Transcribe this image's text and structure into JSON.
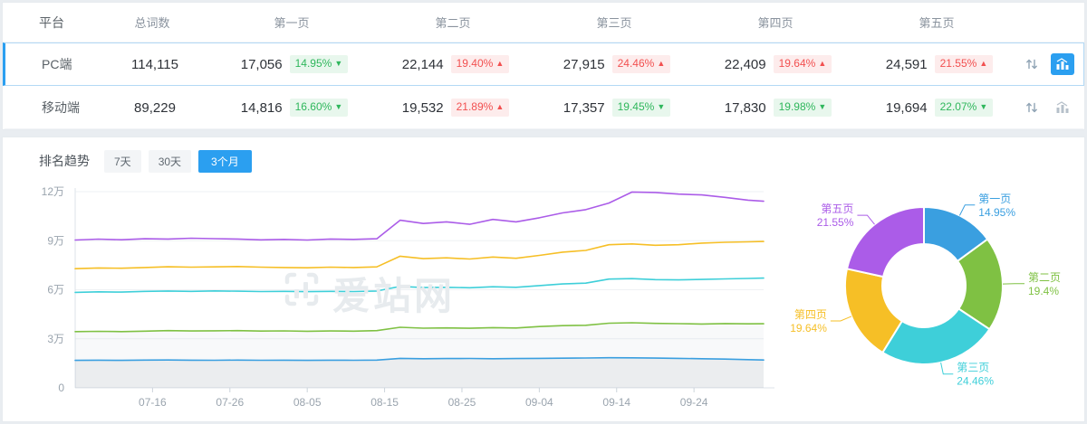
{
  "colors": {
    "accent_blue": "#2b9ff0",
    "badge_up_red": "#f25050",
    "badge_up_bg": "#fdecec",
    "badge_down_green": "#2fb75c",
    "badge_down_bg": "#e8f7ed",
    "series_blue": "#3a9fe0",
    "series_green": "#7fc143",
    "series_cyan": "#3ecfd9",
    "series_yellow": "#f6bf26",
    "series_purple": "#ab5ce8"
  },
  "glyphs": {
    "up": "▲",
    "down": "▼"
  },
  "table": {
    "headers": [
      "平台",
      "总词数",
      "第一页",
      "第二页",
      "第三页",
      "第四页",
      "第五页"
    ],
    "rows": [
      {
        "platform": "PC端",
        "total": "114,115",
        "selected": true,
        "trend_selected": true,
        "pages": [
          {
            "count": "17,056",
            "pct": "14.95%",
            "dir": "down"
          },
          {
            "count": "22,144",
            "pct": "19.40%",
            "dir": "up"
          },
          {
            "count": "27,915",
            "pct": "24.46%",
            "dir": "up"
          },
          {
            "count": "22,409",
            "pct": "19.64%",
            "dir": "up"
          },
          {
            "count": "24,591",
            "pct": "21.55%",
            "dir": "up"
          }
        ]
      },
      {
        "platform": "移动端",
        "total": "89,229",
        "selected": false,
        "trend_selected": false,
        "pages": [
          {
            "count": "14,816",
            "pct": "16.60%",
            "dir": "down"
          },
          {
            "count": "19,532",
            "pct": "21.89%",
            "dir": "up"
          },
          {
            "count": "17,357",
            "pct": "19.45%",
            "dir": "down"
          },
          {
            "count": "17,830",
            "pct": "19.98%",
            "dir": "down"
          },
          {
            "count": "19,694",
            "pct": "22.07%",
            "dir": "down"
          }
        ]
      }
    ]
  },
  "trend": {
    "title": "排名趋势",
    "tabs": [
      {
        "label": "7天",
        "active": false
      },
      {
        "label": "30天",
        "active": false
      },
      {
        "label": "3个月",
        "active": true
      }
    ]
  },
  "watermark": "爱站网",
  "chart_data": [
    {
      "type": "line",
      "title": "排名趋势（3个月，PC端，累计词数）",
      "stacked_cumulative": true,
      "grid": true,
      "legend": "none",
      "x_days": [
        0,
        3,
        6,
        9,
        12,
        15,
        18,
        21,
        24,
        27,
        30,
        33,
        36,
        39,
        42,
        45,
        48,
        51,
        54,
        57,
        60,
        63,
        66,
        69,
        72,
        75,
        78,
        81,
        84,
        87,
        89
      ],
      "x_tick_days": [
        10,
        20,
        30,
        40,
        50,
        60,
        70,
        80
      ],
      "x_tick_labels": [
        "07-16",
        "07-26",
        "08-05",
        "08-15",
        "08-25",
        "09-04",
        "09-14",
        "09-24"
      ],
      "ylim": [
        0,
        120000
      ],
      "y_ticks": [
        0,
        30000,
        60000,
        90000,
        120000
      ],
      "y_tick_labels": [
        "0",
        "3万",
        "6万",
        "9万",
        "12万"
      ],
      "series": [
        {
          "name": "第一页(累计)",
          "color": "#3a9fe0",
          "area": 0.1,
          "values": [
            16800,
            16900,
            16820,
            16950,
            17050,
            16920,
            16860,
            16980,
            16880,
            16930,
            16820,
            16900,
            16860,
            17000,
            18050,
            17820,
            17900,
            17960,
            17820,
            17900,
            18020,
            18120,
            18240,
            18420,
            18360,
            18220,
            18040,
            17820,
            17560,
            17260,
            17056
          ]
        },
        {
          "name": "第二页(累计)",
          "color": "#7fc143",
          "area": 0.05,
          "values": [
            34400,
            34550,
            34420,
            34700,
            34980,
            34800,
            34900,
            35020,
            34720,
            34820,
            34620,
            34800,
            34700,
            35000,
            37050,
            36520,
            36640,
            36420,
            36820,
            36600,
            37520,
            38050,
            38260,
            39520,
            39820,
            39420,
            39240,
            39020,
            39320,
            39150,
            39200
          ]
        },
        {
          "name": "第三页(累计)",
          "color": "#3ecfd9",
          "area": 0,
          "values": [
            58400,
            58750,
            58560,
            59000,
            59220,
            59020,
            59300,
            59120,
            58900,
            59020,
            58820,
            59000,
            58920,
            59200,
            62050,
            61320,
            61520,
            61220,
            61820,
            61520,
            62520,
            63520,
            64050,
            66520,
            66820,
            66220,
            66020,
            66320,
            66620,
            66920,
            67115
          ]
        },
        {
          "name": "第四页(累计)",
          "color": "#f6bf26",
          "area": 0,
          "values": [
            72900,
            73350,
            73180,
            73600,
            74020,
            73820,
            74000,
            74220,
            73800,
            73620,
            73420,
            73800,
            73620,
            74000,
            80520,
            79050,
            79520,
            78820,
            80020,
            79220,
            81020,
            83020,
            84050,
            87520,
            88020,
            87220,
            87520,
            88520,
            89020,
            89320,
            89524
          ]
        },
        {
          "name": "第五页(累计)",
          "color": "#ab5ce8",
          "area": 0,
          "values": [
            90400,
            90950,
            90600,
            91200,
            91020,
            91500,
            91220,
            91000,
            90520,
            90820,
            90420,
            91000,
            90820,
            91200,
            102520,
            100520,
            101520,
            100020,
            103020,
            101520,
            104020,
            107020,
            109020,
            113020,
            119800,
            119520,
            118520,
            118020,
            116520,
            114820,
            114115
          ]
        }
      ]
    },
    {
      "type": "pie",
      "donut": true,
      "start_angle": "top",
      "direction": "clockwise",
      "labels": [
        "第一页",
        "第二页",
        "第三页",
        "第四页",
        "第五页"
      ],
      "values": [
        14.95,
        19.4,
        24.46,
        19.64,
        21.55
      ],
      "value_labels": [
        "14.95%",
        "19.4%",
        "24.46%",
        "19.64%",
        "21.55%"
      ],
      "colors": [
        "#3a9fe0",
        "#7fc143",
        "#3ecfd9",
        "#f6bf26",
        "#ab5ce8"
      ]
    }
  ]
}
